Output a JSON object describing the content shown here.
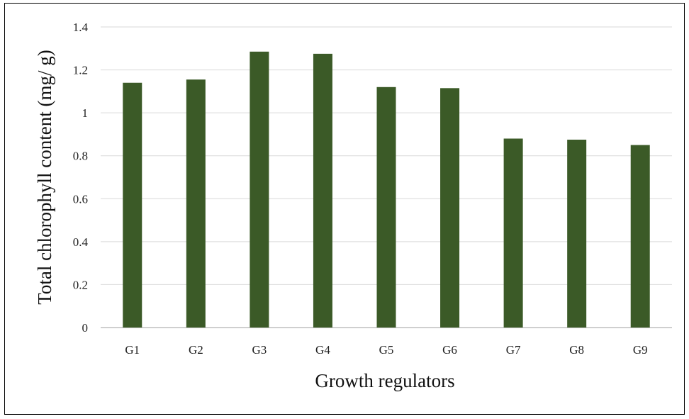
{
  "chart_data": {
    "type": "bar",
    "title": "",
    "xlabel": "Growth regulators",
    "ylabel": "Total chlorophyll content (mg/ g)",
    "categories": [
      "G1",
      "G2",
      "G3",
      "G4",
      "G5",
      "G6",
      "G7",
      "G8",
      "G9"
    ],
    "values": [
      1.14,
      1.155,
      1.285,
      1.275,
      1.12,
      1.115,
      0.88,
      0.875,
      0.85
    ],
    "ylim": [
      0,
      1.4
    ],
    "yticks": [
      "0",
      "0.2",
      "0.4",
      "0.6",
      "0.8",
      "1",
      "1.2",
      "1.4"
    ],
    "grid": true,
    "legend": "none",
    "colors": {
      "bar": "#3b5a27",
      "grid": "#d9d9d9",
      "axis": "#bfbfbf"
    }
  }
}
